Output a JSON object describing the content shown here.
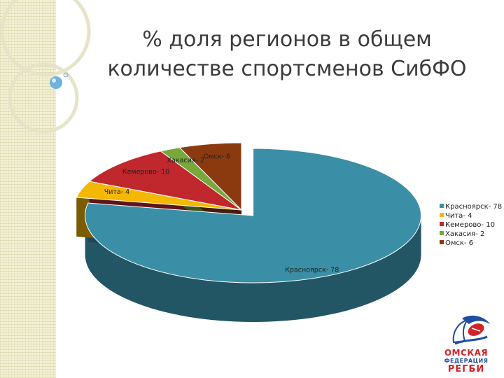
{
  "slide": {
    "title_line1": "% доля регионов в общем",
    "title_line2": "количестве спортсменов СибФО"
  },
  "colors": {
    "Красноярск": "#3a8fa6",
    "Чита": "#f5b800",
    "Кемерово": "#c0282d",
    "Хакасия": "#79a83a",
    "Омск": "#8b3a0f"
  },
  "chart_data": {
    "type": "pie",
    "title": "",
    "labels": [
      "Красноярск",
      "Чита",
      "Кемерово",
      "Хакасия",
      "Омск"
    ],
    "values": [
      78,
      4,
      10,
      2,
      6
    ],
    "data_labels": [
      "Красноярск- 78",
      "Чита- 4",
      "Кемерово- 10",
      "Хакасия- 2",
      "Омск- 6"
    ],
    "legend": [
      "Красноярск- 78",
      "Чита- 4",
      "Кемерово- 10",
      "Хакасия- 2",
      "Омск- 6"
    ],
    "legend_position": "right",
    "three_d": true,
    "exploded_slice": "Красноярск"
  },
  "logo": {
    "line1": "ОМСКАЯ",
    "line2": "ФЕДЕРАЦИЯ",
    "line3": "РЕГБИ"
  }
}
